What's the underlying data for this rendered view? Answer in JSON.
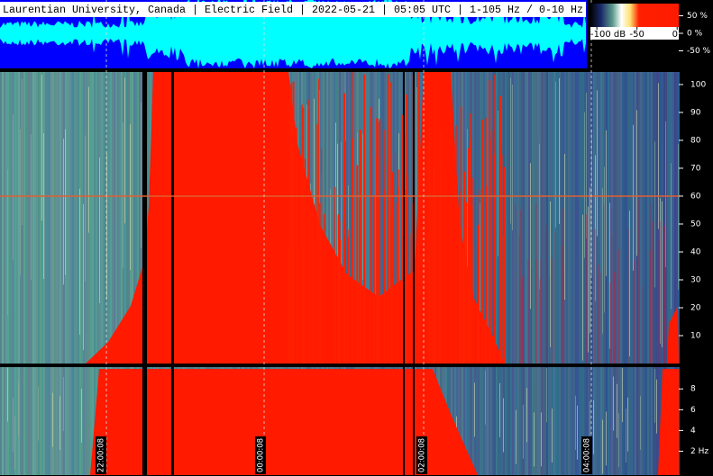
{
  "header": {
    "title": "Laurentian University, Canada | Electric Field | 2022-05-21 | 05:05 UTC | 1-105 Hz / 0-10 Hz"
  },
  "colorbar": {
    "xlim": [
      -108,
      2
    ],
    "ticks": [
      {
        "value": -100,
        "label": "-100 dB"
      },
      -50,
      0
    ]
  },
  "waveform": {
    "ylim": [
      -100,
      95
    ],
    "yticks": [
      {
        "value": 50,
        "label": "50 %"
      },
      {
        "value": 0,
        "label": "0 %"
      },
      {
        "value": -50,
        "label": "-50 %"
      }
    ]
  },
  "spectrogram_high": {
    "ylim": [
      0,
      104.5
    ],
    "yticks": [
      10,
      20,
      30,
      40,
      50,
      60,
      70,
      80,
      90,
      100
    ]
  },
  "spectrogram_low": {
    "ylim": [
      -0.3,
      10.1
    ],
    "yticks": [
      {
        "value": 2,
        "label": "2 Hz"
      },
      4,
      6,
      8
    ]
  },
  "time_labels": [
    "22:00:08",
    "00:00:08",
    "02:00:08",
    "04:00:08"
  ]
}
